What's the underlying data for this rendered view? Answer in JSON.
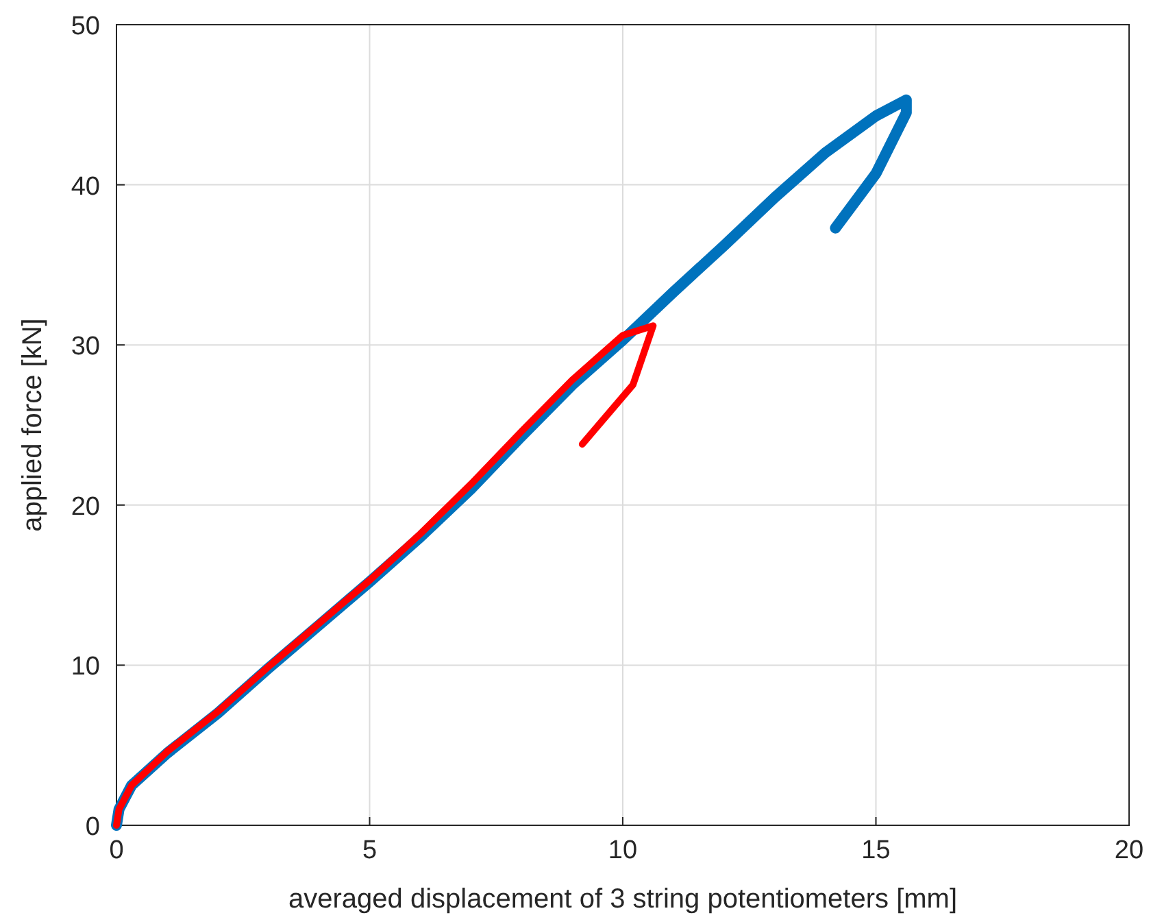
{
  "chart_data": {
    "type": "line",
    "xlabel": "averaged displacement of 3 string potentiometers [mm]",
    "ylabel": "applied force [kN]",
    "xlim": [
      0,
      20
    ],
    "ylim": [
      0,
      50
    ],
    "xticks": [
      0,
      5,
      10,
      15,
      20
    ],
    "yticks": [
      0,
      10,
      20,
      30,
      40,
      50
    ],
    "grid": true,
    "line_style": "solid",
    "series": [
      {
        "color": "#0072bd",
        "x": [
          0,
          0.05,
          0.3,
          1,
          2,
          3,
          4,
          5,
          6,
          7,
          8,
          9,
          10,
          11,
          12,
          13,
          14,
          15,
          15.6,
          15.6,
          15.0,
          14.2
        ],
        "values": [
          0,
          1,
          2.5,
          4.5,
          7,
          9.8,
          12.5,
          15.2,
          18,
          21,
          24.3,
          27.5,
          30.3,
          33.3,
          36.2,
          39.2,
          42,
          44.3,
          45.3,
          44.5,
          40.7,
          37.3
        ]
      },
      {
        "color": "#ff0000",
        "x": [
          0,
          0.05,
          0.3,
          1,
          2,
          3,
          4,
          5,
          6,
          7,
          8,
          9,
          10,
          10.6,
          10.2,
          9.2
        ],
        "values": [
          0,
          1,
          2.5,
          4.6,
          7.1,
          9.9,
          12.6,
          15.3,
          18.2,
          21.3,
          24.6,
          27.8,
          30.6,
          31.2,
          27.5,
          23.8
        ]
      }
    ]
  }
}
